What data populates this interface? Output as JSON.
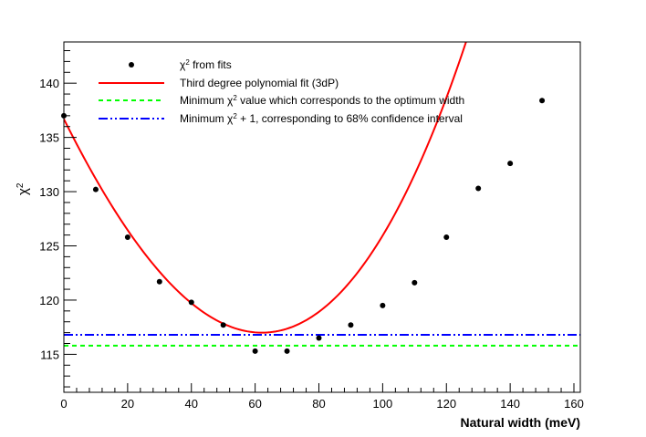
{
  "chart_data": {
    "type": "scatter",
    "title": "",
    "xlabel": "Natural width (meV)",
    "ylabel": "χ2",
    "xlim": [
      0,
      162
    ],
    "ylim": [
      111.5,
      143.8
    ],
    "xticks": [
      0,
      20,
      40,
      60,
      80,
      100,
      120,
      140,
      160
    ],
    "yticks": [
      115,
      120,
      125,
      130,
      135,
      140
    ],
    "series": [
      {
        "name": "χ2 from fits",
        "kind": "points",
        "color": "#000000",
        "x": [
          0,
          10,
          20,
          30,
          40,
          50,
          60,
          70,
          80,
          90,
          100,
          110,
          120,
          130,
          140,
          150
        ],
        "y": [
          137.0,
          130.2,
          125.8,
          121.7,
          119.8,
          117.7,
          115.3,
          115.3,
          116.5,
          117.7,
          119.5,
          121.6,
          125.8,
          130.3,
          132.6,
          138.4
        ]
      },
      {
        "name": "Third degree polynomial fit (3dP)",
        "kind": "polynomial",
        "color": "#ff0000",
        "coefficients": [
          136.7,
          -0.5905,
          0.003695,
          1.135e-05
        ],
        "x_range": [
          0,
          162
        ]
      },
      {
        "name": "Minimum χ2 value which corresponds to the optimum width",
        "kind": "hline",
        "color": "#00ff00",
        "dash": "dashed",
        "y": 115.8
      },
      {
        "name": "Minimum χ2 + 1, corresponding to 68% confidence interval",
        "kind": "hline",
        "color": "#0000ff",
        "dash": "dash-dot",
        "y": 116.8
      }
    ],
    "legend": {
      "placement": "top-left",
      "entries": [
        {
          "prefix": "χ",
          "sup": "2",
          "suffix": " from fits"
        },
        {
          "prefix": "Third degree polynomial fit (3dP)",
          "sup": "",
          "suffix": ""
        },
        {
          "prefix": "Minimum χ",
          "sup": "2",
          "suffix": " value which corresponds to the optimum width"
        },
        {
          "prefix": "Minimum χ",
          "sup": "2",
          "suffix": " + 1, corresponding to 68% confidence interval"
        }
      ]
    },
    "grid": false
  }
}
